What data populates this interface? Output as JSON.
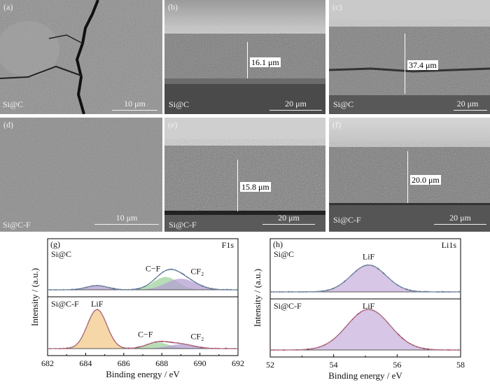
{
  "sem_panels": [
    {
      "id": "a",
      "label": "(a)",
      "sample": "Si@C",
      "scale": "10 μm",
      "thickness": ""
    },
    {
      "id": "b",
      "label": "(b)",
      "sample": "Si@C",
      "scale": "20 μm",
      "thickness": "16.1 μm"
    },
    {
      "id": "c",
      "label": "(c)",
      "sample": "Si@C",
      "scale": "20 μm",
      "thickness": "37.4 μm"
    },
    {
      "id": "d",
      "label": "(d)",
      "sample": "Si@C-F",
      "scale": "10 μm",
      "thickness": ""
    },
    {
      "id": "e",
      "label": "(e)",
      "sample": "Si@C-F",
      "scale": "20 μm",
      "thickness": "15.8 μm"
    },
    {
      "id": "f",
      "label": "(f)",
      "sample": "Si@C-F",
      "scale": "20 μm",
      "thickness": "20.0 μm"
    }
  ],
  "chart_data": [
    {
      "type": "line",
      "panel": "(g)",
      "title": "F1s",
      "xlabel": "Binding energy / eV",
      "ylabel": "Intensity / (a.u.)",
      "xlim": [
        682,
        692
      ],
      "xticks": [
        682,
        684,
        686,
        688,
        690,
        692
      ],
      "x_reversed": false,
      "subplots": [
        {
          "sample": "Si@C",
          "peaks": [
            {
              "name": "LiF",
              "center": 684.6,
              "height": 0.1,
              "fwhm": 1.3,
              "color": "#b39fd1"
            },
            {
              "name": "C-F",
              "center": 688.2,
              "height": 0.3,
              "fwhm": 1.5,
              "color": "#9fd19f"
            },
            {
              "name": "CF2",
              "center": 689.0,
              "height": 0.26,
              "fwhm": 1.8,
              "color": "#b39fd1"
            }
          ],
          "annotations": [
            "C−F",
            "CF₂"
          ]
        },
        {
          "sample": "Si@C-F",
          "peaks": [
            {
              "name": "LiF",
              "center": 684.6,
              "height": 0.9,
              "fwhm": 1.2,
              "color": "#f3c98b"
            },
            {
              "name": "C-F",
              "center": 687.8,
              "height": 0.14,
              "fwhm": 1.4,
              "color": "#9fd19f"
            },
            {
              "name": "CF2",
              "center": 689.0,
              "height": 0.1,
              "fwhm": 1.6,
              "color": "#b39fd1"
            }
          ],
          "annotations": [
            "LiF",
            "C−F",
            "CF₂"
          ]
        }
      ]
    },
    {
      "type": "line",
      "panel": "(h)",
      "title": "Li1s",
      "xlabel": "Binding energy / eV",
      "ylabel": "Intensity / (a.u.)",
      "xlim": [
        52,
        58
      ],
      "xticks": [
        52,
        54,
        56,
        58
      ],
      "subplots": [
        {
          "sample": "Si@C",
          "peaks": [
            {
              "name": "LiF",
              "center": 55.1,
              "height": 0.6,
              "fwhm": 1.3,
              "color": "#c9b3dd"
            }
          ],
          "annotations": [
            "LiF"
          ]
        },
        {
          "sample": "Si@C-F",
          "peaks": [
            {
              "name": "LiF",
              "center": 55.1,
              "height": 0.95,
              "fwhm": 1.6,
              "color": "#c9b3dd"
            }
          ],
          "annotations": [
            "LiF"
          ]
        }
      ]
    }
  ]
}
